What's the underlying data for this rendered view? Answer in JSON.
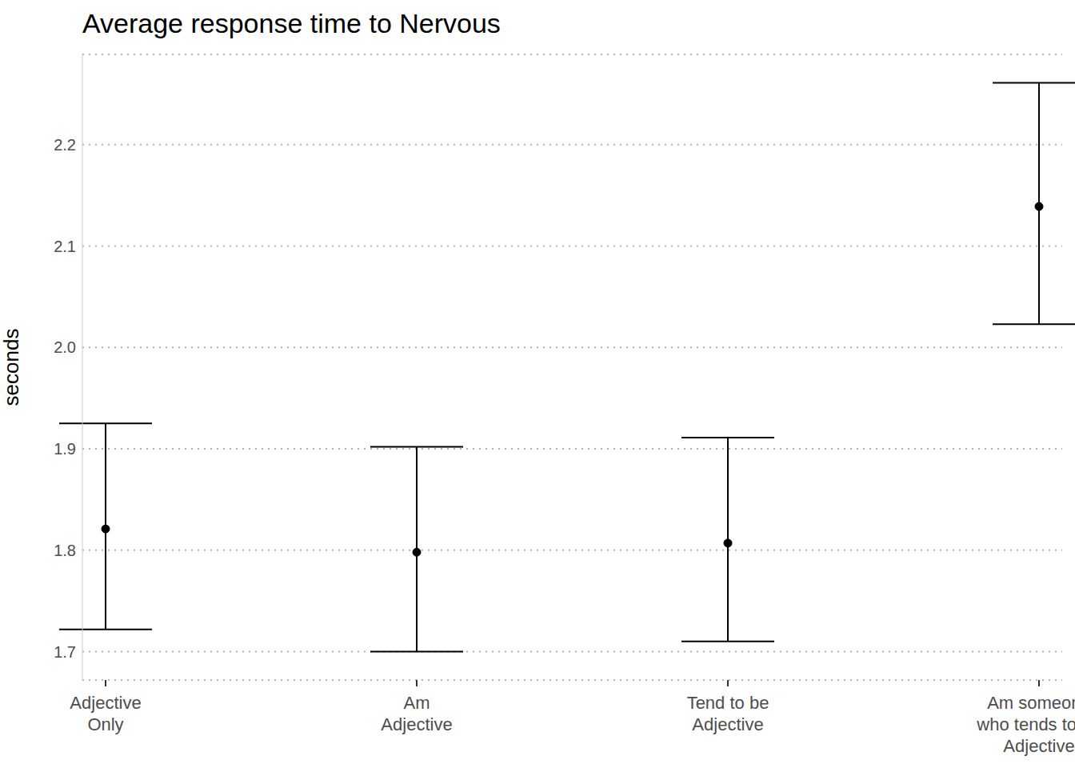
{
  "chart_data": {
    "type": "scatter",
    "title": "Average response time to Nervous",
    "ylabel": "seconds",
    "categories": [
      "Adjective\nOnly",
      "Am\nAdjective",
      "Tend to be\nAdjective",
      "Am someone\nwho tends to be\nAdjective"
    ],
    "values": [
      1.821,
      1.798,
      1.807,
      2.139
    ],
    "lower": [
      1.722,
      1.7,
      1.71,
      2.023
    ],
    "upper": [
      1.925,
      1.902,
      1.911,
      2.261
    ],
    "color": "#000000",
    "ylim": [
      1.672,
      2.289
    ],
    "yticks": [
      1.7,
      1.8,
      1.9,
      {
        "value": 2,
        "label": "2.0"
      },
      2.1,
      2.2
    ],
    "grid": true
  }
}
